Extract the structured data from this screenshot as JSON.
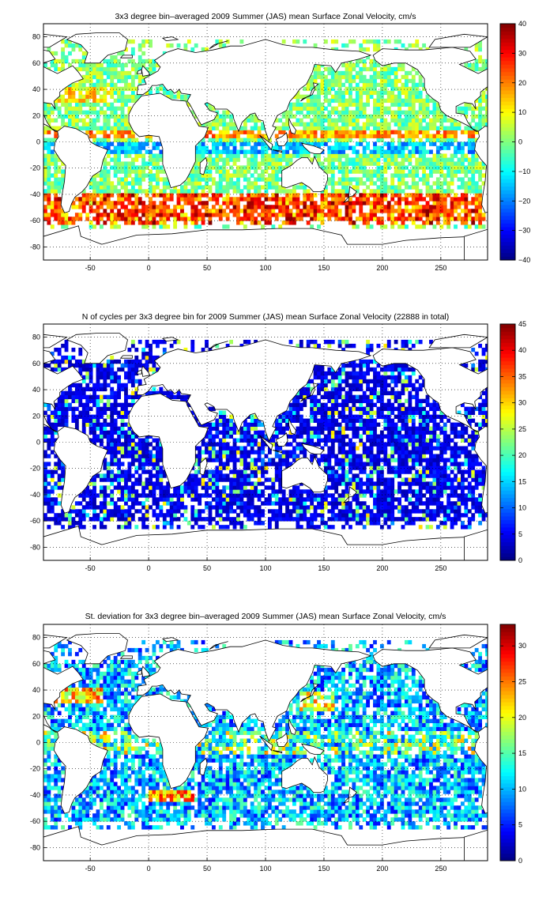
{
  "panels": [
    {
      "title": "3x3 degree bin–averaged 2009 Summer (JAS) mean Surface Zonal Velocity, cm/s",
      "variable": "mean_zonal_velocity",
      "units": "cm/s",
      "clim": [
        -40,
        40
      ],
      "colorbar_ticks": [
        "40",
        "30",
        "20",
        "10",
        "0",
        "−10",
        "−20",
        "−30",
        "−40"
      ]
    },
    {
      "title": "N of cycles per 3x3 degree bin for 2009 Summer (JAS) mean Surface Zonal Velocity (22888 in total)",
      "variable": "n_cycles",
      "total": 22888,
      "clim": [
        0,
        45
      ],
      "colorbar_ticks": [
        "45",
        "40",
        "35",
        "30",
        "25",
        "20",
        "15",
        "10",
        "5",
        "0"
      ]
    },
    {
      "title": "St. deviation for 3x3 degree bin–averaged 2009 Summer (JAS) mean Surface Zonal Velocity, cm/s",
      "variable": "std_zonal_velocity",
      "units": "cm/s",
      "clim": [
        0,
        33
      ],
      "colorbar_ticks": [
        "30",
        "25",
        "20",
        "15",
        "10",
        "5",
        "0"
      ]
    }
  ],
  "axes": {
    "xlim": [
      -90,
      290
    ],
    "ylim": [
      -90,
      90
    ],
    "xticks": [
      "-50",
      "0",
      "50",
      "100",
      "150",
      "200",
      "250"
    ],
    "yticks": [
      "80",
      "60",
      "40",
      "20",
      "0",
      "-20",
      "-40",
      "-60",
      "-80"
    ],
    "grid": "dotted"
  },
  "colormap": "jet",
  "bin_size_deg": 3
}
